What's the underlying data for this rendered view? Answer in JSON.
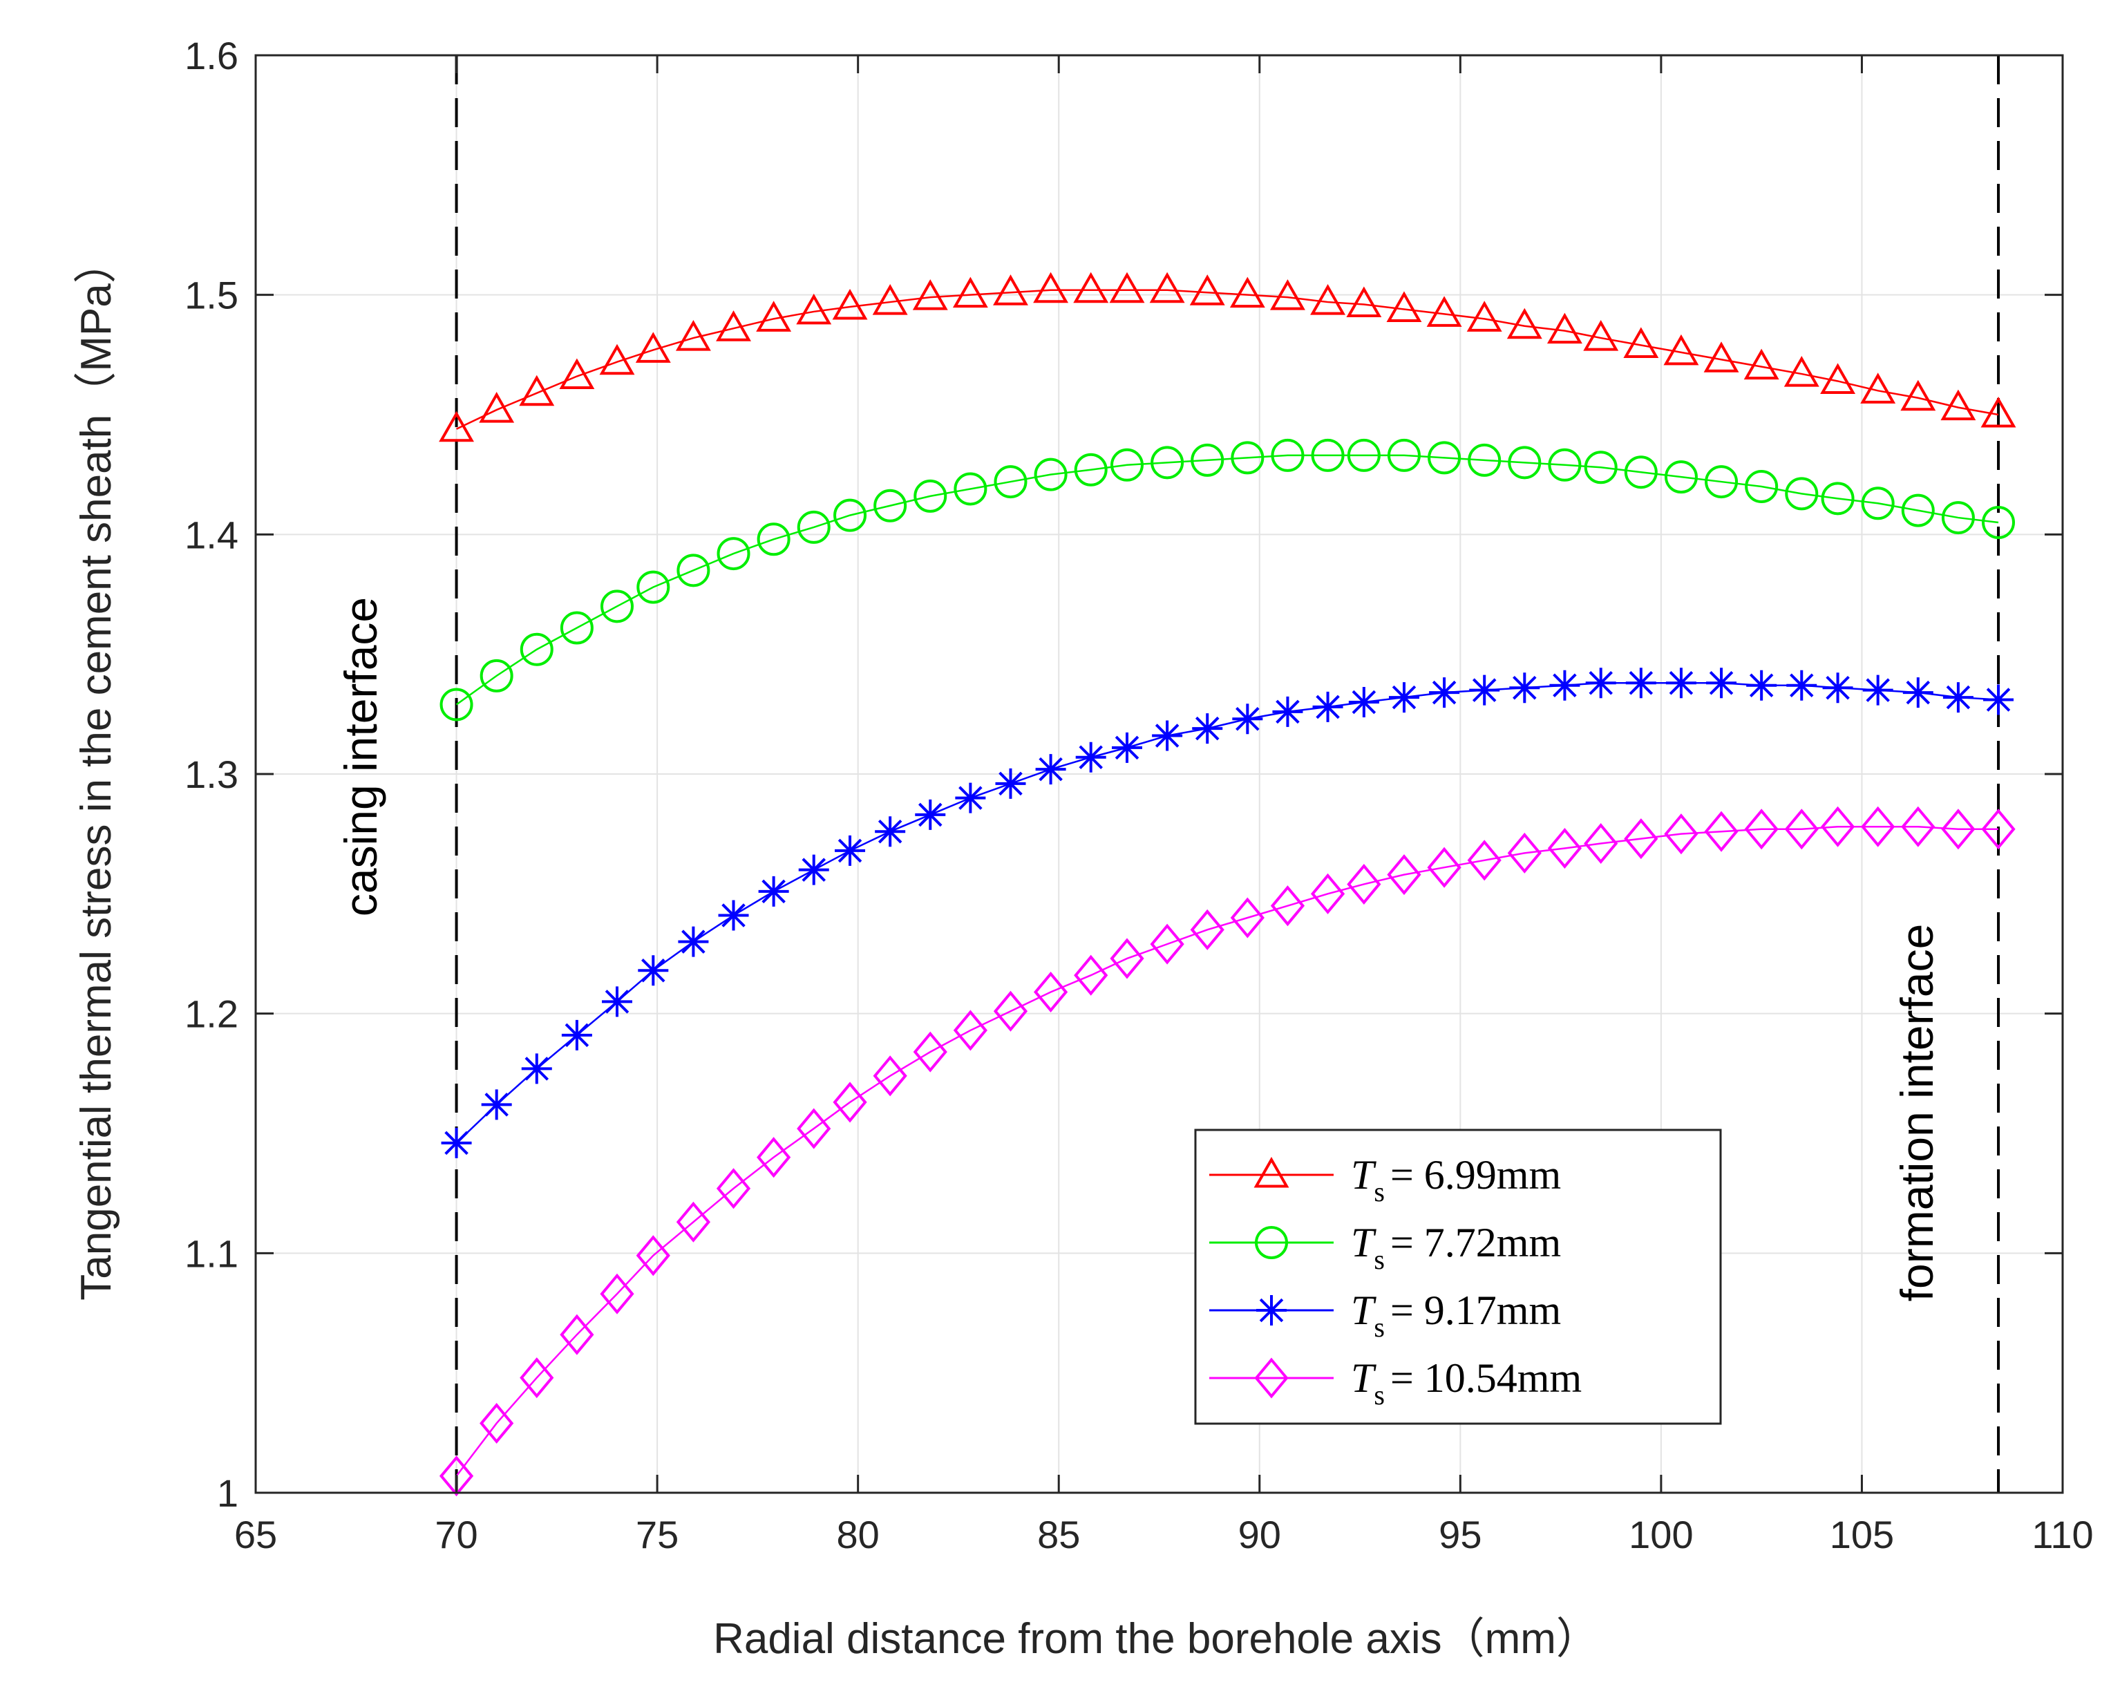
{
  "chart_data": {
    "type": "line",
    "xlabel": "Radial distance from the borehole axis（mm）",
    "ylabel": "Tangential thermal stress in the cement sheath（MPa）",
    "xlim": [
      65,
      110
    ],
    "ylim": [
      1.0,
      1.6
    ],
    "xticks": [
      "65",
      "70",
      "75",
      "80",
      "85",
      "90",
      "95",
      "100",
      "105",
      "110"
    ],
    "yticks": [
      "1",
      "1.1",
      "1.2",
      "1.3",
      "1.4",
      "1.5",
      "1.6"
    ],
    "grid": true,
    "legend_position": "lower-center",
    "x": [
      70.0,
      71.0,
      72.0,
      73.0,
      74.0,
      74.9,
      75.9,
      76.9,
      77.9,
      78.9,
      79.8,
      80.8,
      81.8,
      82.8,
      83.8,
      84.8,
      85.8,
      86.7,
      87.7,
      88.7,
      89.7,
      90.7,
      91.7,
      92.6,
      93.6,
      94.6,
      95.6,
      96.6,
      97.6,
      98.5,
      99.5,
      100.5,
      101.5,
      102.5,
      103.5,
      104.4,
      105.4,
      106.4,
      107.4,
      108.4
    ],
    "series": [
      {
        "name_italic": "T",
        "name_sub": "s",
        "name_rest": "=  6.99mm",
        "color": "#ff0000",
        "marker": "triangle",
        "values": [
          1.444,
          1.452,
          1.459,
          1.466,
          1.472,
          1.477,
          1.482,
          1.486,
          1.49,
          1.493,
          1.495,
          1.497,
          1.499,
          1.5,
          1.501,
          1.502,
          1.502,
          1.502,
          1.502,
          1.501,
          1.5,
          1.499,
          1.497,
          1.496,
          1.494,
          1.492,
          1.49,
          1.487,
          1.485,
          1.482,
          1.479,
          1.476,
          1.473,
          1.47,
          1.467,
          1.464,
          1.46,
          1.457,
          1.453,
          1.45
        ]
      },
      {
        "name_italic": "T",
        "name_sub": "s",
        "name_rest": "=  7.72mm",
        "color": "#00ee00",
        "marker": "circle",
        "values": [
          1.329,
          1.341,
          1.352,
          1.361,
          1.37,
          1.378,
          1.385,
          1.392,
          1.398,
          1.403,
          1.408,
          1.412,
          1.416,
          1.419,
          1.422,
          1.425,
          1.427,
          1.429,
          1.43,
          1.431,
          1.432,
          1.433,
          1.433,
          1.433,
          1.433,
          1.432,
          1.431,
          1.43,
          1.429,
          1.428,
          1.426,
          1.424,
          1.422,
          1.42,
          1.417,
          1.415,
          1.413,
          1.41,
          1.407,
          1.405
        ]
      },
      {
        "name_italic": "T",
        "name_sub": "s",
        "name_rest": "=  9.17mm",
        "color": "#0000ff",
        "marker": "asterisk",
        "values": [
          1.146,
          1.162,
          1.177,
          1.191,
          1.205,
          1.218,
          1.23,
          1.241,
          1.251,
          1.26,
          1.268,
          1.276,
          1.283,
          1.29,
          1.296,
          1.302,
          1.307,
          1.311,
          1.316,
          1.319,
          1.323,
          1.326,
          1.328,
          1.33,
          1.332,
          1.334,
          1.335,
          1.336,
          1.337,
          1.338,
          1.338,
          1.338,
          1.338,
          1.337,
          1.337,
          1.336,
          1.335,
          1.334,
          1.332,
          1.331
        ]
      },
      {
        "name_italic": "T",
        "name_sub": "s",
        "name_rest": "=  10.54mm",
        "color": "#ff00ff",
        "marker": "diamond",
        "values": [
          1.007,
          1.029,
          1.048,
          1.066,
          1.083,
          1.099,
          1.113,
          1.127,
          1.14,
          1.152,
          1.163,
          1.174,
          1.184,
          1.193,
          1.201,
          1.209,
          1.216,
          1.223,
          1.229,
          1.235,
          1.24,
          1.245,
          1.25,
          1.254,
          1.258,
          1.261,
          1.264,
          1.267,
          1.269,
          1.271,
          1.273,
          1.275,
          1.276,
          1.277,
          1.277,
          1.278,
          1.278,
          1.278,
          1.277,
          1.277
        ]
      }
    ],
    "vlines": [
      70,
      108.4
    ],
    "annotations": [
      "casing  interface",
      "formation  interface"
    ]
  }
}
